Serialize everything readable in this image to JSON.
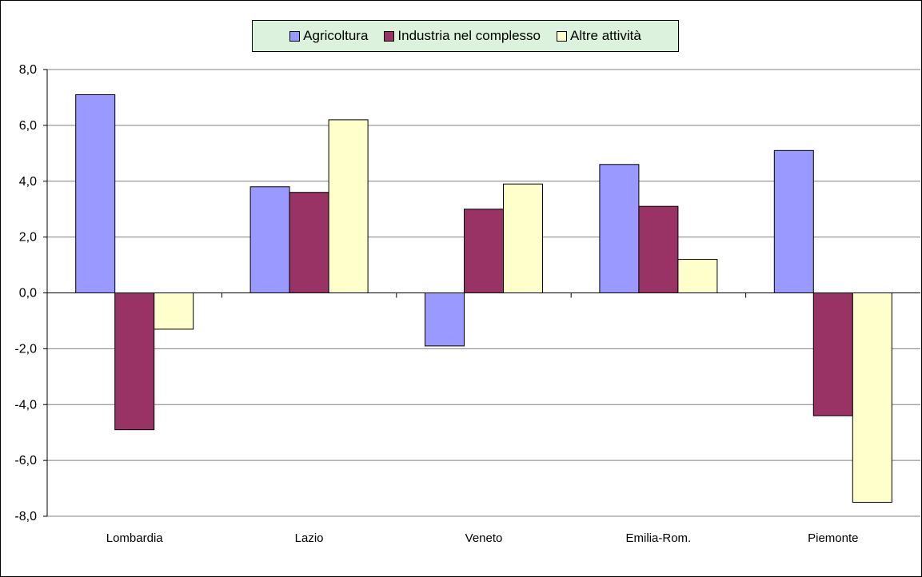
{
  "chart_data": {
    "type": "bar",
    "title": "",
    "xlabel": "",
    "ylabel": "",
    "categories": [
      "Lombardia",
      "Lazio",
      "Veneto",
      "Emilia-Rom.",
      "Piemonte"
    ],
    "series": [
      {
        "name": "Agricoltura",
        "color": "#9999ff",
        "values": [
          7.1,
          3.8,
          -1.9,
          4.6,
          5.1
        ]
      },
      {
        "name": "Industria nel complesso",
        "color": "#993366",
        "values": [
          -4.9,
          3.6,
          3.0,
          3.1,
          -4.4
        ]
      },
      {
        "name": "Altre attività",
        "color": "#ffffcc",
        "values": [
          -1.3,
          6.2,
          3.9,
          1.2,
          -7.5
        ]
      }
    ],
    "ylim": [
      -8,
      8
    ],
    "yticks": [
      "-8,0",
      "-6,0",
      "-4,0",
      "-2,0",
      "0,0",
      "2,0",
      "4,0",
      "6,0",
      "8,0"
    ],
    "grid": true,
    "legend_position": "top",
    "legend_background": "#ddf2dd"
  }
}
